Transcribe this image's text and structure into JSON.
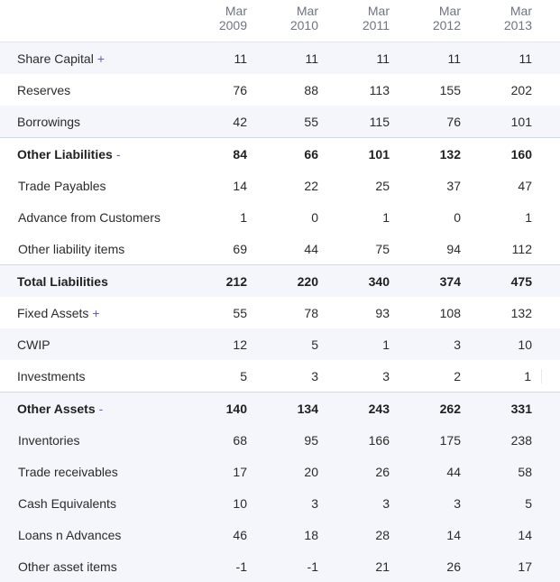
{
  "columns": [
    {
      "month": "Mar",
      "year": "2009"
    },
    {
      "month": "Mar",
      "year": "2010"
    },
    {
      "month": "Mar",
      "year": "2011"
    },
    {
      "month": "Mar",
      "year": "2012"
    },
    {
      "month": "Mar",
      "year": "2013"
    }
  ],
  "rows": [
    {
      "label": "Share Capital",
      "toggle": "+",
      "values": [
        "11",
        "11",
        "11",
        "11",
        "11"
      ]
    },
    {
      "label": "Reserves",
      "values": [
        "76",
        "88",
        "113",
        "155",
        "202"
      ]
    },
    {
      "label": "Borrowings",
      "values": [
        "42",
        "55",
        "115",
        "76",
        "101"
      ]
    },
    {
      "label": "Other Liabilities",
      "toggle": "-",
      "values": [
        "84",
        "66",
        "101",
        "132",
        "160"
      ]
    },
    {
      "label": "Trade Payables",
      "values": [
        "14",
        "22",
        "25",
        "37",
        "47"
      ]
    },
    {
      "label": "Advance from Customers",
      "values": [
        "1",
        "0",
        "1",
        "0",
        "1"
      ]
    },
    {
      "label": "Other liability items",
      "values": [
        "69",
        "44",
        "75",
        "94",
        "112"
      ]
    },
    {
      "label": "Total Liabilities",
      "values": [
        "212",
        "220",
        "340",
        "374",
        "475"
      ]
    },
    {
      "label": "Fixed Assets",
      "toggle": "+",
      "values": [
        "55",
        "78",
        "93",
        "108",
        "132"
      ]
    },
    {
      "label": "CWIP",
      "values": [
        "12",
        "5",
        "1",
        "3",
        "10"
      ]
    },
    {
      "label": "Investments",
      "values": [
        "5",
        "3",
        "3",
        "2",
        "1"
      ]
    },
    {
      "label": "Other Assets",
      "toggle": "-",
      "values": [
        "140",
        "134",
        "243",
        "262",
        "331"
      ]
    },
    {
      "label": "Inventories",
      "values": [
        "68",
        "95",
        "166",
        "175",
        "238"
      ]
    },
    {
      "label": "Trade receivables",
      "values": [
        "17",
        "20",
        "26",
        "44",
        "58"
      ]
    },
    {
      "label": "Cash Equivalents",
      "values": [
        "10",
        "3",
        "3",
        "3",
        "5"
      ]
    },
    {
      "label": "Loans n Advances",
      "values": [
        "46",
        "18",
        "28",
        "14",
        "14"
      ]
    },
    {
      "label": "Other asset items",
      "values": [
        "-1",
        "-1",
        "21",
        "26",
        "17"
      ]
    }
  ],
  "colors": {
    "accent": "#6a5acd",
    "alt_row": "#f4f6fb",
    "separator": "#cfd9ec"
  }
}
